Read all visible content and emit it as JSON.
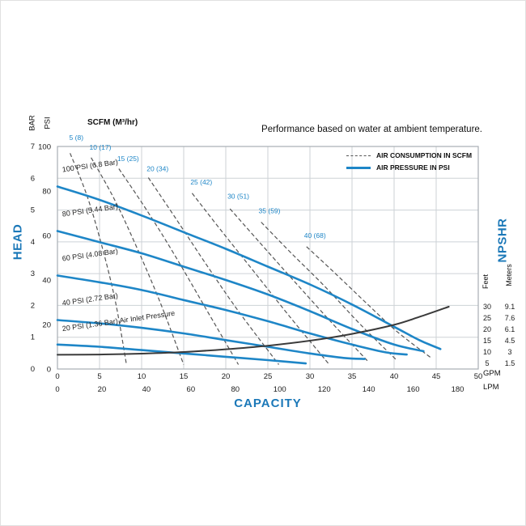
{
  "page": {
    "note": "Performance based on water at ambient temperature.",
    "scfm_label": "SCFM (M³/hr)"
  },
  "legend": {
    "items": [
      {
        "label": "AIR CONSUMPTION IN SCFM",
        "style": "dashed",
        "color": "#555555"
      },
      {
        "label": "AIR PRESSURE IN PSI",
        "style": "solid",
        "color": "#1e86c7"
      }
    ]
  },
  "axes": {
    "left": {
      "title": "HEAD",
      "scales": [
        {
          "label": "BAR",
          "ticks": [
            7,
            6,
            5,
            4,
            3,
            2,
            1,
            0
          ]
        },
        {
          "label": "PSI",
          "ticks": [
            100,
            80,
            60,
            40,
            20,
            0
          ]
        }
      ]
    },
    "bottom": {
      "title": "CAPACITY",
      "scales": [
        {
          "label": "GPM",
          "ticks": [
            0,
            5,
            10,
            15,
            20,
            25,
            30,
            35,
            40,
            45,
            50
          ]
        },
        {
          "label": "LPM",
          "ticks": [
            0,
            20,
            40,
            60,
            80,
            100,
            120,
            140,
            160,
            180
          ]
        }
      ]
    },
    "right": {
      "title": "NPSHR",
      "scales": [
        {
          "label": "Feet",
          "ticks": [
            "30",
            "25",
            "20",
            "15",
            "10",
            "5"
          ]
        },
        {
          "label": "Meters",
          "ticks": [
            "9.1",
            "7.6",
            "6.1",
            "4.5",
            "3",
            "1.5"
          ]
        }
      ]
    }
  },
  "colors": {
    "accent_blue": "#1b78b8",
    "curve_blue": "#1e86c7",
    "dash_gray": "#555555",
    "npshr_dark": "#3a3a3a",
    "grid": "#cdd2d6",
    "border": "#a8aeb3",
    "tick_text": "#1a1a1a"
  },
  "chart_data": {
    "type": "line",
    "title": "Performance based on water at ambient temperature.",
    "xlabel": "CAPACITY",
    "x_axis": {
      "units": "GPM",
      "range": [
        0,
        50
      ],
      "secondary_units": "LPM",
      "secondary_range": [
        0,
        189
      ],
      "grid_step_gpm": 5
    },
    "y_axis_left": {
      "label": "HEAD",
      "units": "PSI",
      "range": [
        0,
        100
      ],
      "secondary_units": "BAR",
      "secondary_range": [
        0,
        7
      ],
      "grid_step_bar": 1
    },
    "y_axis_right": {
      "label": "NPSHR",
      "units": "Feet",
      "tick_values_feet": [
        5,
        10,
        15,
        20,
        25,
        30
      ],
      "tick_values_meters": [
        1.5,
        3,
        4.5,
        6.1,
        7.6,
        9.1
      ]
    },
    "legend_position": "top-right",
    "grid": true,
    "air_pressure_curves_psi": [
      {
        "label": "100 PSI (6.8 Bar)",
        "label_pos": [
          0.6,
          88.5
        ],
        "points": [
          [
            0,
            82
          ],
          [
            5,
            76
          ],
          [
            10,
            69
          ],
          [
            15,
            61.5
          ],
          [
            20,
            54
          ],
          [
            25,
            46
          ],
          [
            30,
            38
          ],
          [
            35,
            29
          ],
          [
            40,
            19
          ],
          [
            43,
            13
          ],
          [
            45.5,
            9
          ]
        ]
      },
      {
        "label": "80 PSI (5.44 Bar)",
        "label_pos": [
          0.6,
          68.5
        ],
        "points": [
          [
            0,
            62
          ],
          [
            5,
            57
          ],
          [
            10,
            52
          ],
          [
            15,
            46
          ],
          [
            20,
            40
          ],
          [
            25,
            33.5
          ],
          [
            30,
            26
          ],
          [
            35,
            18
          ],
          [
            40,
            11
          ],
          [
            43.5,
            8
          ]
        ]
      },
      {
        "label": "60 PSI (4.08 Bar)",
        "label_pos": [
          0.6,
          48.5
        ],
        "points": [
          [
            0,
            42
          ],
          [
            5,
            39
          ],
          [
            10,
            35.5
          ],
          [
            15,
            31
          ],
          [
            20,
            26.5
          ],
          [
            25,
            21.5
          ],
          [
            30,
            16
          ],
          [
            35,
            11
          ],
          [
            39,
            7.5
          ],
          [
            41.5,
            6.5
          ]
        ]
      },
      {
        "label": "40 PSI (2.72 Bar)",
        "label_pos": [
          0.6,
          28.5
        ],
        "points": [
          [
            0,
            22
          ],
          [
            5,
            20.5
          ],
          [
            10,
            18.5
          ],
          [
            15,
            16
          ],
          [
            20,
            13
          ],
          [
            25,
            10
          ],
          [
            30,
            7
          ],
          [
            34,
            5
          ],
          [
            36.5,
            4.5
          ]
        ]
      },
      {
        "label": "20 PSI (1.36 Bar) Air Inlet Pressure",
        "label_pos": [
          0.6,
          17
        ],
        "points": [
          [
            0,
            11
          ],
          [
            5,
            10
          ],
          [
            10,
            8.5
          ],
          [
            15,
            7
          ],
          [
            20,
            5.5
          ],
          [
            25,
            4
          ],
          [
            29.5,
            2.5
          ]
        ]
      }
    ],
    "air_consumption_curves_scfm": [
      {
        "label": "5 (8)",
        "label_pos": [
          1.4,
          103
        ],
        "points": [
          [
            1.5,
            97
          ],
          [
            3.5,
            78
          ],
          [
            5.3,
            55
          ],
          [
            6.9,
            30
          ],
          [
            8.2,
            2
          ]
        ]
      },
      {
        "label": "10 (17)",
        "label_pos": [
          3.8,
          98.5
        ],
        "points": [
          [
            4,
            95
          ],
          [
            6.8,
            76
          ],
          [
            9.5,
            54
          ],
          [
            12.2,
            30
          ],
          [
            15,
            2
          ]
        ]
      },
      {
        "label": "15 (25)",
        "label_pos": [
          7.1,
          93.5
        ],
        "points": [
          [
            7.3,
            90
          ],
          [
            10.5,
            72
          ],
          [
            13.8,
            52
          ],
          [
            17.5,
            28
          ],
          [
            21.5,
            2
          ]
        ]
      },
      {
        "label": "20 (34)",
        "label_pos": [
          10.6,
          89
        ],
        "points": [
          [
            10.8,
            86
          ],
          [
            14,
            68
          ],
          [
            17.5,
            48
          ],
          [
            21.5,
            26
          ],
          [
            26.3,
            2
          ]
        ]
      },
      {
        "label": "25 (42)",
        "label_pos": [
          15.8,
          83
        ],
        "points": [
          [
            16,
            79
          ],
          [
            19.5,
            62
          ],
          [
            23.3,
            44
          ],
          [
            27.5,
            24
          ],
          [
            32.3,
            2
          ]
        ]
      },
      {
        "label": "30 (51)",
        "label_pos": [
          20.2,
          76.5
        ],
        "points": [
          [
            20.5,
            72
          ],
          [
            24,
            57
          ],
          [
            28,
            40
          ],
          [
            32.3,
            22
          ],
          [
            37,
            3
          ]
        ]
      },
      {
        "label": "35 (59)",
        "label_pos": [
          23.9,
          70
        ],
        "points": [
          [
            24.2,
            66
          ],
          [
            27.8,
            52
          ],
          [
            31.8,
            37
          ],
          [
            36,
            20
          ],
          [
            40.3,
            4
          ]
        ]
      },
      {
        "label": "40 (68)",
        "label_pos": [
          29.3,
          59
        ],
        "points": [
          [
            29.6,
            55
          ],
          [
            33,
            43
          ],
          [
            36.6,
            30
          ],
          [
            40.3,
            17
          ],
          [
            44.4,
            5
          ]
        ]
      }
    ],
    "npshr_curve_gpm_feet": [
      [
        0,
        8.8
      ],
      [
        5,
        8.9
      ],
      [
        10,
        9.3
      ],
      [
        15,
        10
      ],
      [
        20,
        11.2
      ],
      [
        25,
        12.8
      ],
      [
        30,
        15
      ],
      [
        35,
        18
      ],
      [
        40,
        22
      ],
      [
        43,
        25.5
      ],
      [
        46.5,
        30
      ]
    ]
  }
}
